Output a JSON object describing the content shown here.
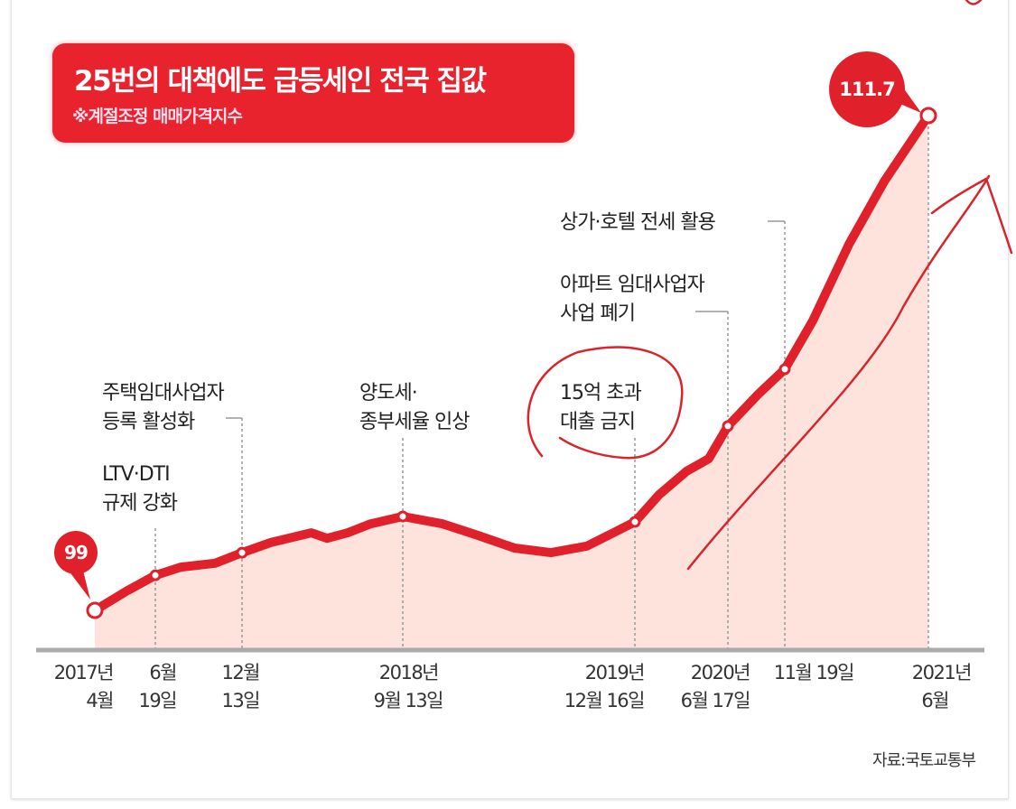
{
  "chart_data": {
    "type": "area",
    "title": "25번의 대책에도 급등세인 전국 집값",
    "subtitle": "※계절조정 매매가격지수",
    "source": "자료:국토교통부",
    "ylim": [
      98,
      112.5
    ],
    "grid": false,
    "colors": {
      "line": "#e0202a",
      "fill": "#fde3dc",
      "title_bg": "#e8232e",
      "handwriting": "#d8252b"
    },
    "series": [
      {
        "points": [
          [
            "2017-04-01",
            99.0
          ],
          [
            "2017-05-12",
            99.49
          ],
          [
            "2017-06-19",
            99.9
          ],
          [
            "2017-08-10",
            100.11
          ],
          [
            "2017-10-19",
            100.21
          ],
          [
            "2017-12-13",
            100.48
          ],
          [
            "2018-01-31",
            100.74
          ],
          [
            "2018-04-10",
            100.99
          ],
          [
            "2018-05-07",
            100.85
          ],
          [
            "2018-06-11",
            100.99
          ],
          [
            "2018-07-20",
            101.22
          ],
          [
            "2018-09-13",
            101.41
          ],
          [
            "2018-12-01",
            101.22
          ],
          [
            "2019-02-10",
            100.92
          ],
          [
            "2019-04-22",
            100.6
          ],
          [
            "2019-07-03",
            100.48
          ],
          [
            "2019-09-12",
            100.65
          ],
          [
            "2019-11-05",
            101.0
          ],
          [
            "2019-12-16",
            101.27
          ],
          [
            "2020-02-02",
            101.97
          ],
          [
            "2020-03-27",
            102.57
          ],
          [
            "2020-05-10",
            102.89
          ],
          [
            "2020-06-17",
            103.73
          ],
          [
            "2020-09-09",
            104.56
          ],
          [
            "2020-11-19",
            105.19
          ],
          [
            "2020-12-27",
            106.44
          ],
          [
            "2021-02-14",
            108.41
          ],
          [
            "2021-04-03",
            110.03
          ],
          [
            "2021-06-01",
            111.7
          ]
        ]
      }
    ],
    "data_labels": {
      "start": "99",
      "end": "111.7"
    },
    "x_ticks": [
      {
        "date": "2017-04-01",
        "line1": "2017년",
        "line2": "4월"
      },
      {
        "date": "2017-06-19",
        "line1": "6월",
        "line2": "19일"
      },
      {
        "date": "2017-12-13",
        "line1": "12월",
        "line2": "13일"
      },
      {
        "date": "2018-09-13",
        "line1": "2018년",
        "line2": "9월 13일"
      },
      {
        "date": "2019-12-16",
        "line1": "2019년",
        "line2": "12월 16일"
      },
      {
        "date": "2020-06-17",
        "line1": "2020년",
        "line2": "6월 17일"
      },
      {
        "date": "2020-11-19",
        "line1": "11월 19일",
        "line2": ""
      },
      {
        "date": "2021-06-01",
        "line1": "2021년",
        "line2": "6월"
      }
    ],
    "annotations": [
      {
        "date": "2017-06-19",
        "lines": [
          "LTV·DTI",
          "규제 강화"
        ]
      },
      {
        "date": "2017-12-13",
        "lines": [
          "주택임대사업자",
          "등록 활성화"
        ]
      },
      {
        "date": "2018-09-13",
        "lines": [
          "양도세·",
          "종부세율 인상"
        ]
      },
      {
        "date": "2019-12-16",
        "lines": [
          "15억 초과",
          "대출 금지"
        ]
      },
      {
        "date": "2020-06-17",
        "lines": [
          "아파트 임대사업자",
          "사업 폐기"
        ]
      },
      {
        "date": "2020-11-19",
        "lines": [
          "상가·호텔 전세 활용"
        ]
      }
    ]
  }
}
